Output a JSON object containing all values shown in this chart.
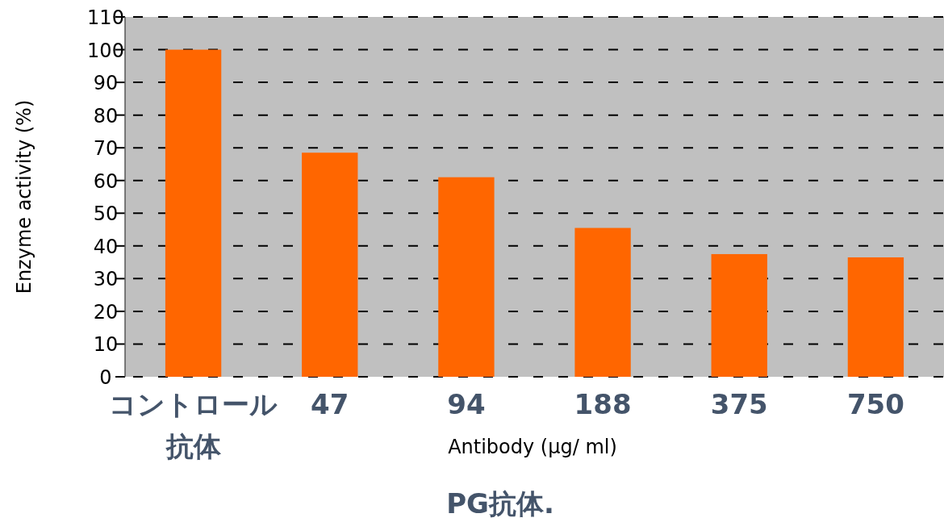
{
  "chart_data": {
    "type": "bar",
    "title": "PG抗体.",
    "xlabel": "Antibody (μg/ ml)",
    "ylabel": "Enzyme activity (%)",
    "categories": [
      "コントロール抗体",
      "47",
      "94",
      "188",
      "375",
      "750"
    ],
    "values": [
      100,
      68.5,
      61,
      45.5,
      37.5,
      36.5
    ],
    "color": "#ff6600",
    "ylim": [
      0,
      110
    ],
    "yticks": [
      0,
      10,
      20,
      30,
      40,
      50,
      60,
      70,
      80,
      90,
      100,
      110
    ],
    "grid": "y"
  }
}
